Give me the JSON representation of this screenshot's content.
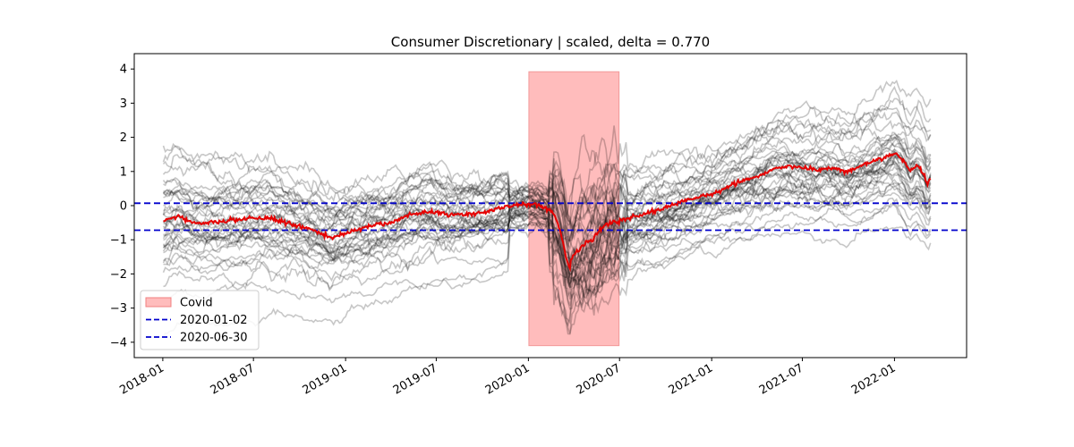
{
  "chart_data": {
    "type": "line",
    "title": "Consumer Discretionary | scaled, delta = 0.770",
    "xlabel": "",
    "ylabel": "",
    "x_range": [
      "2017-11-05",
      "2022-05-25"
    ],
    "ylim": [
      -4.45,
      4.45
    ],
    "x_ticks": [
      "2018-01",
      "2018-07",
      "2019-01",
      "2019-07",
      "2020-01",
      "2020-07",
      "2021-01",
      "2021-07",
      "2022-01"
    ],
    "y_ticks": [
      4,
      3,
      2,
      1,
      0,
      -1,
      -2,
      -3,
      -4
    ],
    "grid": false,
    "legend_position": "lower-left",
    "legend": [
      {
        "label": "Covid",
        "kind": "patch",
        "color": "#ffbcbc",
        "edge": "#f08080"
      },
      {
        "label": "2020-01-02",
        "kind": "dashed-line",
        "color": "#0000cc"
      },
      {
        "label": "2020-06-30",
        "kind": "dashed-line",
        "color": "#0000cc"
      }
    ],
    "shaded_region": {
      "label": "Covid",
      "x_start": "2020-01-02",
      "x_end": "2020-06-30",
      "y_start": -4.1,
      "y_end": 3.92,
      "color": "#ffbcbc"
    },
    "hlines": [
      {
        "y": 0.07,
        "color": "#0000cc",
        "style": "dashed"
      },
      {
        "y": -0.72,
        "color": "#0000cc",
        "style": "dashed"
      }
    ],
    "x_start": "2018-01-02",
    "x_end": "2022-03-15",
    "colors": {
      "mean_line": "#e60000",
      "member_lines": "#000000",
      "member_opacity": 0.22
    },
    "mean_series": {
      "dates": [
        "2018-01-02",
        "2018-02-01",
        "2018-03-01",
        "2018-04-02",
        "2018-05-01",
        "2018-06-01",
        "2018-07-02",
        "2018-08-01",
        "2018-09-03",
        "2018-10-01",
        "2018-11-01",
        "2018-12-03",
        "2018-12-24",
        "2019-01-15",
        "2019-02-01",
        "2019-03-01",
        "2019-04-01",
        "2019-05-01",
        "2019-06-03",
        "2019-07-01",
        "2019-08-01",
        "2019-09-02",
        "2019-10-01",
        "2019-11-01",
        "2019-12-02",
        "2020-01-02",
        "2020-01-20",
        "2020-02-03",
        "2020-02-20",
        "2020-03-02",
        "2020-03-09",
        "2020-03-16",
        "2020-03-23",
        "2020-03-30",
        "2020-04-10",
        "2020-04-24",
        "2020-05-08",
        "2020-05-22",
        "2020-06-05",
        "2020-06-19",
        "2020-07-01",
        "2020-08-03",
        "2020-09-01",
        "2020-10-01",
        "2020-11-02",
        "2020-12-01",
        "2021-01-04",
        "2021-02-01",
        "2021-03-01",
        "2021-04-01",
        "2021-05-03",
        "2021-06-01",
        "2021-07-01",
        "2021-08-02",
        "2021-09-01",
        "2021-10-01",
        "2021-11-01",
        "2021-12-01",
        "2022-01-03",
        "2022-01-20",
        "2022-02-01",
        "2022-02-15",
        "2022-03-01",
        "2022-03-08",
        "2022-03-15"
      ],
      "values": [
        -0.45,
        -0.3,
        -0.5,
        -0.52,
        -0.46,
        -0.4,
        -0.38,
        -0.35,
        -0.5,
        -0.6,
        -0.72,
        -0.95,
        -0.85,
        -0.75,
        -0.68,
        -0.55,
        -0.5,
        -0.3,
        -0.2,
        -0.18,
        -0.28,
        -0.25,
        -0.2,
        -0.1,
        0.0,
        0.05,
        0.02,
        -0.08,
        -0.2,
        -0.6,
        -1.0,
        -1.5,
        -1.8,
        -1.45,
        -1.3,
        -1.1,
        -1.0,
        -0.7,
        -0.55,
        -0.5,
        -0.45,
        -0.3,
        -0.2,
        -0.05,
        0.1,
        0.25,
        0.35,
        0.55,
        0.7,
        0.85,
        1.05,
        1.15,
        1.1,
        1.05,
        1.1,
        1.0,
        1.2,
        1.35,
        1.55,
        1.3,
        1.0,
        1.2,
        0.9,
        0.6,
        0.85
      ]
    },
    "member_lines_description_count": 40
  }
}
